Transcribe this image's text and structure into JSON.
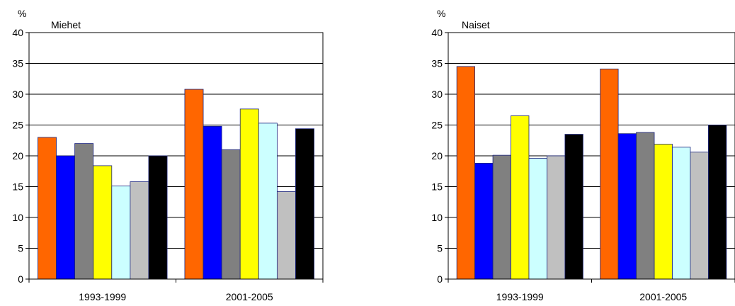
{
  "chart_data": [
    {
      "type": "bar",
      "title": "Miehet",
      "ylabel": "%",
      "categories": [
        "1993-1999",
        "2001-2005"
      ],
      "ylim": [
        0,
        40
      ],
      "yticks": [
        0,
        5,
        10,
        15,
        20,
        25,
        30,
        35,
        40
      ],
      "grid": true,
      "legend": "none",
      "series_colors": [
        "#ff6600",
        "#0000ff",
        "#808080",
        "#ffff00",
        "#ccffff",
        "#c0c0c0",
        "#000000"
      ],
      "series": [
        {
          "values": [
            23.0,
            30.8
          ]
        },
        {
          "values": [
            20.0,
            24.8
          ]
        },
        {
          "values": [
            22.0,
            21.0
          ]
        },
        {
          "values": [
            18.4,
            27.6
          ]
        },
        {
          "values": [
            15.1,
            25.3
          ]
        },
        {
          "values": [
            15.8,
            14.2
          ]
        },
        {
          "values": [
            20.0,
            24.4
          ]
        }
      ]
    },
    {
      "type": "bar",
      "title": "Naiset",
      "ylabel": "%",
      "categories": [
        "1993-1999",
        "2001-2005"
      ],
      "ylim": [
        0,
        40
      ],
      "yticks": [
        0,
        5,
        10,
        15,
        20,
        25,
        30,
        35,
        40
      ],
      "grid": true,
      "legend": "none",
      "series_colors": [
        "#ff6600",
        "#0000ff",
        "#808080",
        "#ffff00",
        "#ccffff",
        "#c0c0c0",
        "#000000"
      ],
      "series": [
        {
          "values": [
            34.5,
            34.1
          ]
        },
        {
          "values": [
            18.8,
            23.6
          ]
        },
        {
          "values": [
            20.1,
            23.8
          ]
        },
        {
          "values": [
            26.5,
            21.9
          ]
        },
        {
          "values": [
            19.6,
            21.4
          ]
        },
        {
          "values": [
            20.0,
            20.6
          ]
        },
        {
          "values": [
            23.5,
            25.0
          ]
        }
      ]
    }
  ]
}
